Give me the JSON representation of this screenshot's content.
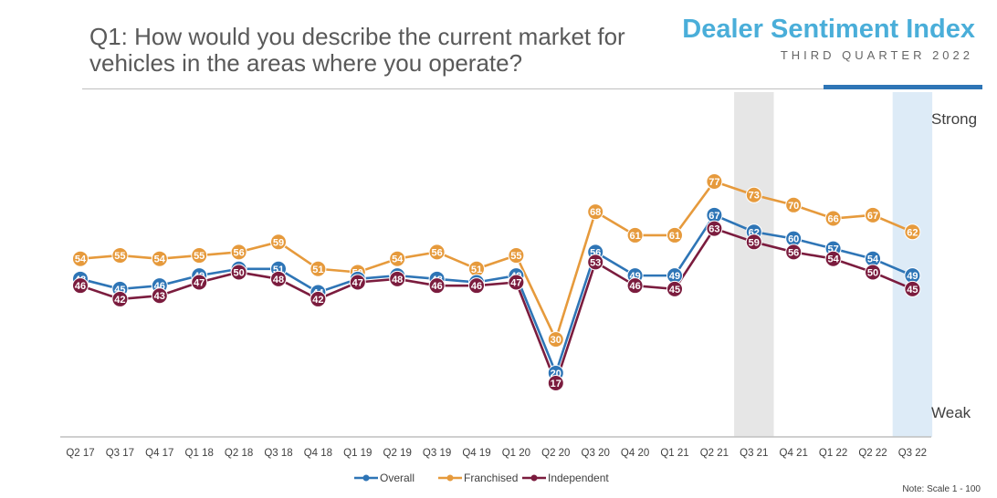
{
  "header": {
    "question": "Q1: How would you describe the current market for vehicles in the areas where you operate?",
    "brand_title": "Dealer Sentiment Index",
    "brand_subtitle": "THIRD QUARTER 2022"
  },
  "note": "Note: Scale 1 - 100",
  "colors": {
    "overall": "#2e75b6",
    "franchised": "#e69a3c",
    "independent": "#7b1c3e",
    "highlight_gray": "#e6e6e6",
    "highlight_blue": "#ddebf7"
  },
  "chart_data": {
    "type": "line",
    "categories": [
      "Q2 17",
      "Q3 17",
      "Q4 17",
      "Q1 18",
      "Q2 18",
      "Q3 18",
      "Q4 18",
      "Q1 19",
      "Q2 19",
      "Q3 19",
      "Q4 19",
      "Q1 20",
      "Q2 20",
      "Q3 20",
      "Q4 20",
      "Q1 21",
      "Q2 21",
      "Q3 21",
      "Q4 21",
      "Q1 22",
      "Q2 22",
      "Q3 22"
    ],
    "series": [
      {
        "name": "Overall",
        "values": [
          48,
          45,
          46,
          49,
          51,
          51,
          44,
          48,
          49,
          48,
          47,
          49,
          20,
          56,
          49,
          49,
          67,
          62,
          60,
          57,
          54,
          49
        ]
      },
      {
        "name": "Franchised",
        "values": [
          54,
          55,
          54,
          55,
          56,
          59,
          51,
          50,
          54,
          56,
          51,
          55,
          30,
          68,
          61,
          61,
          77,
          73,
          70,
          66,
          67,
          62
        ]
      },
      {
        "name": "Independent",
        "values": [
          46,
          42,
          43,
          47,
          50,
          48,
          42,
          47,
          48,
          46,
          46,
          47,
          17,
          53,
          46,
          45,
          63,
          59,
          56,
          54,
          50,
          45
        ]
      }
    ],
    "y_scale_labels": {
      "top": "Strong",
      "bottom": "Weak"
    },
    "ylim": [
      0,
      100
    ],
    "highlighted_categories": [
      "Q3 21",
      "Q3 22"
    ],
    "legend_position": "bottom-center",
    "grid": false
  }
}
